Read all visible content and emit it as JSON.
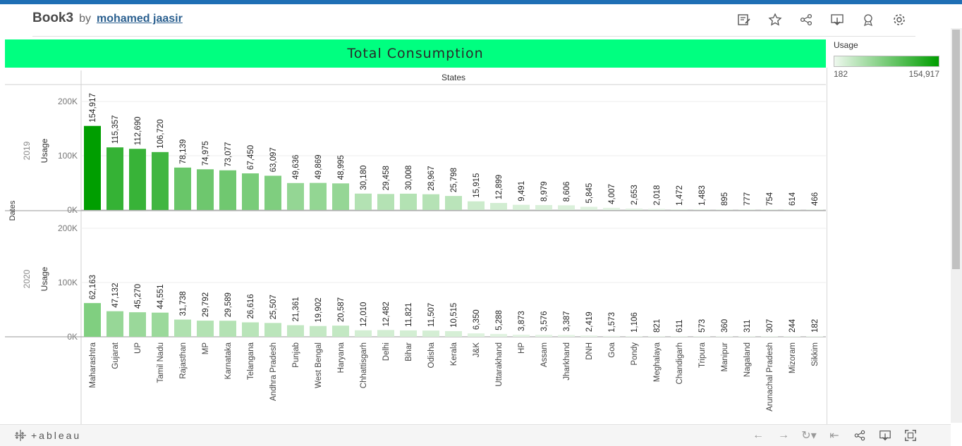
{
  "header": {
    "title": "Book3",
    "by": "by",
    "author": "mohamed jaasir"
  },
  "toolbar_icons": [
    "edit-icon",
    "star-icon",
    "share-icon",
    "download-icon",
    "badge-icon",
    "gear-icon"
  ],
  "banner": {
    "title": "Total Consumption"
  },
  "legend": {
    "title": "Usage",
    "min_label": "182",
    "max_label": "154,917",
    "color_low": "#eef8ee",
    "color_high": "#009e00"
  },
  "chart_data": {
    "type": "bar",
    "column_header": "States",
    "row_header": "Dates",
    "measure": "Usage",
    "y_ticks": [
      "0K",
      "100K",
      "200K"
    ],
    "categories": [
      "Maharashtra",
      "Gujarat",
      "UP",
      "Tamil Nadu",
      "Rajasthan",
      "MP",
      "Karnataka",
      "Telangana",
      "Andhra Pradesh",
      "Punjab",
      "West Bengal",
      "Haryana",
      "Chhattisgarh",
      "Delhi",
      "Bihar",
      "Odisha",
      "Kerala",
      "J&K",
      "Uttarakhand",
      "HP",
      "Assam",
      "Jharkhand",
      "DNH",
      "Goa",
      "Pondy",
      "Meghalaya",
      "Chandigarh",
      "Tripura",
      "Manipur",
      "Nagaland",
      "Arunachal Pradesh",
      "Mizoram",
      "Sikkim"
    ],
    "series": [
      {
        "name": "2019",
        "values": [
          154917,
          115357,
          112690,
          106720,
          78139,
          74975,
          73077,
          67450,
          63097,
          49636,
          49869,
          48995,
          30180,
          29458,
          30008,
          28967,
          25798,
          15915,
          12899,
          9491,
          8979,
          8606,
          5845,
          4007,
          2653,
          2018,
          1472,
          1483,
          895,
          777,
          754,
          614,
          466
        ],
        "labels": [
          "154,917",
          "115,357",
          "112,690",
          "106,720",
          "78,139",
          "74,975",
          "73,077",
          "67,450",
          "63,097",
          "49,636",
          "49,869",
          "48,995",
          "30,180",
          "29,458",
          "30,008",
          "28,967",
          "25,798",
          "15,915",
          "12,899",
          "9,491",
          "8,979",
          "8,606",
          "5,845",
          "4,007",
          "2,653",
          "2,018",
          "1,472",
          "1,483",
          "895",
          "777",
          "754",
          "614",
          "466"
        ]
      },
      {
        "name": "2020",
        "values": [
          62163,
          47132,
          45270,
          44551,
          31738,
          29792,
          29589,
          26616,
          25507,
          21361,
          19902,
          20587,
          12010,
          12482,
          11821,
          11507,
          10515,
          6350,
          5288,
          3873,
          3576,
          3387,
          2419,
          1573,
          1106,
          821,
          611,
          573,
          360,
          311,
          307,
          244,
          182
        ],
        "labels": [
          "62,163",
          "47,132",
          "45,270",
          "44,551",
          "31,738",
          "29,792",
          "29,589",
          "26,616",
          "25,507",
          "21,361",
          "19,902",
          "20,587",
          "12,010",
          "12,482",
          "11,821",
          "11,507",
          "10,515",
          "6,350",
          "5,288",
          "3,873",
          "3,576",
          "3,387",
          "2,419",
          "1,573",
          "1,106",
          "821",
          "611",
          "573",
          "360",
          "311",
          "307",
          "244",
          "182"
        ]
      }
    ]
  },
  "footer": {
    "logo_text": "+ableau",
    "nav_icons": [
      "undo-icon",
      "redo-icon",
      "revert-icon",
      "reset-icon",
      "share-icon",
      "download-icon",
      "fullscreen-icon"
    ]
  }
}
